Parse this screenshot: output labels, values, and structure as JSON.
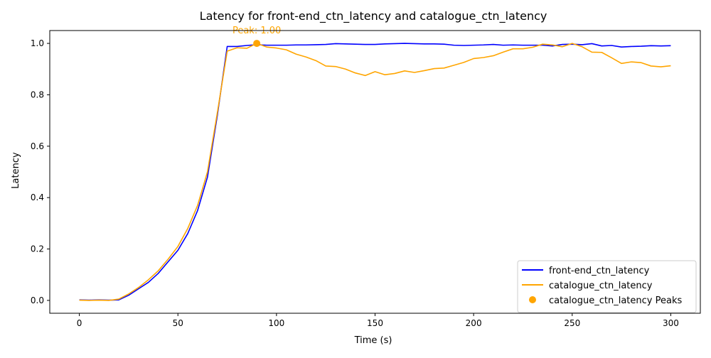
{
  "chart_data": {
    "type": "line",
    "title": "Latency for front-end_ctn_latency and catalogue_ctn_latency",
    "xlabel": "Time (s)",
    "ylabel": "Latency",
    "xlim": [
      -15,
      315
    ],
    "ylim": [
      -0.05,
      1.05
    ],
    "x_ticks": [
      0,
      50,
      100,
      150,
      200,
      250,
      300
    ],
    "y_ticks": [
      0.0,
      0.2,
      0.4,
      0.6,
      0.8,
      1.0
    ],
    "x_tick_labels": [
      "0",
      "50",
      "100",
      "150",
      "200",
      "250",
      "300"
    ],
    "y_tick_labels": [
      "0.0",
      "0.2",
      "0.4",
      "0.6",
      "0.8",
      "1.0"
    ],
    "grid": false,
    "legend_position": "lower-right",
    "x": [
      0,
      5,
      10,
      15,
      20,
      25,
      30,
      35,
      40,
      45,
      50,
      55,
      60,
      65,
      70,
      75,
      80,
      85,
      90,
      95,
      100,
      105,
      110,
      115,
      120,
      125,
      130,
      135,
      140,
      145,
      150,
      155,
      160,
      165,
      170,
      175,
      180,
      185,
      190,
      195,
      200,
      205,
      210,
      215,
      220,
      225,
      230,
      235,
      240,
      245,
      250,
      255,
      260,
      265,
      270,
      275,
      280,
      285,
      290,
      295,
      300
    ],
    "series": [
      {
        "name": "front-end_ctn_latency",
        "color": "#0000ff",
        "values": [
          0.002,
          0.001,
          0.002,
          0.001,
          0.002,
          0.02,
          0.045,
          0.07,
          0.105,
          0.15,
          0.195,
          0.26,
          0.35,
          0.48,
          0.72,
          0.988,
          0.988,
          0.992,
          0.995,
          0.993,
          0.993,
          0.993,
          0.994,
          0.994,
          0.995,
          0.996,
          0.999,
          0.998,
          0.997,
          0.996,
          0.996,
          0.998,
          0.999,
          1.0,
          0.999,
          0.998,
          0.998,
          0.997,
          0.993,
          0.992,
          0.993,
          0.994,
          0.996,
          0.993,
          0.994,
          0.993,
          0.993,
          0.993,
          0.99,
          0.996,
          0.997,
          0.995,
          0.999,
          0.99,
          0.992,
          0.986,
          0.988,
          0.989,
          0.991,
          0.99,
          0.991
        ]
      },
      {
        "name": "catalogue_ctn_latency",
        "color": "#ffa500",
        "values": [
          0.001,
          0.0,
          0.001,
          0.0,
          0.005,
          0.025,
          0.05,
          0.08,
          0.115,
          0.16,
          0.21,
          0.28,
          0.37,
          0.5,
          0.73,
          0.97,
          0.983,
          0.981,
          1.0,
          0.986,
          0.982,
          0.975,
          0.958,
          0.947,
          0.933,
          0.912,
          0.91,
          0.9,
          0.885,
          0.875,
          0.89,
          0.878,
          0.883,
          0.893,
          0.887,
          0.894,
          0.902,
          0.904,
          0.915,
          0.926,
          0.941,
          0.945,
          0.952,
          0.966,
          0.979,
          0.979,
          0.985,
          0.997,
          0.994,
          0.987,
          1.0,
          0.987,
          0.966,
          0.965,
          0.944,
          0.922,
          0.928,
          0.925,
          0.912,
          0.909,
          0.913
        ]
      }
    ],
    "peaks": {
      "name": "catalogue_ctn_latency Peaks",
      "color": "#ffa500",
      "points": [
        {
          "x": 90,
          "y": 1.0
        }
      ],
      "annotation": "Peak: 1.00"
    }
  }
}
